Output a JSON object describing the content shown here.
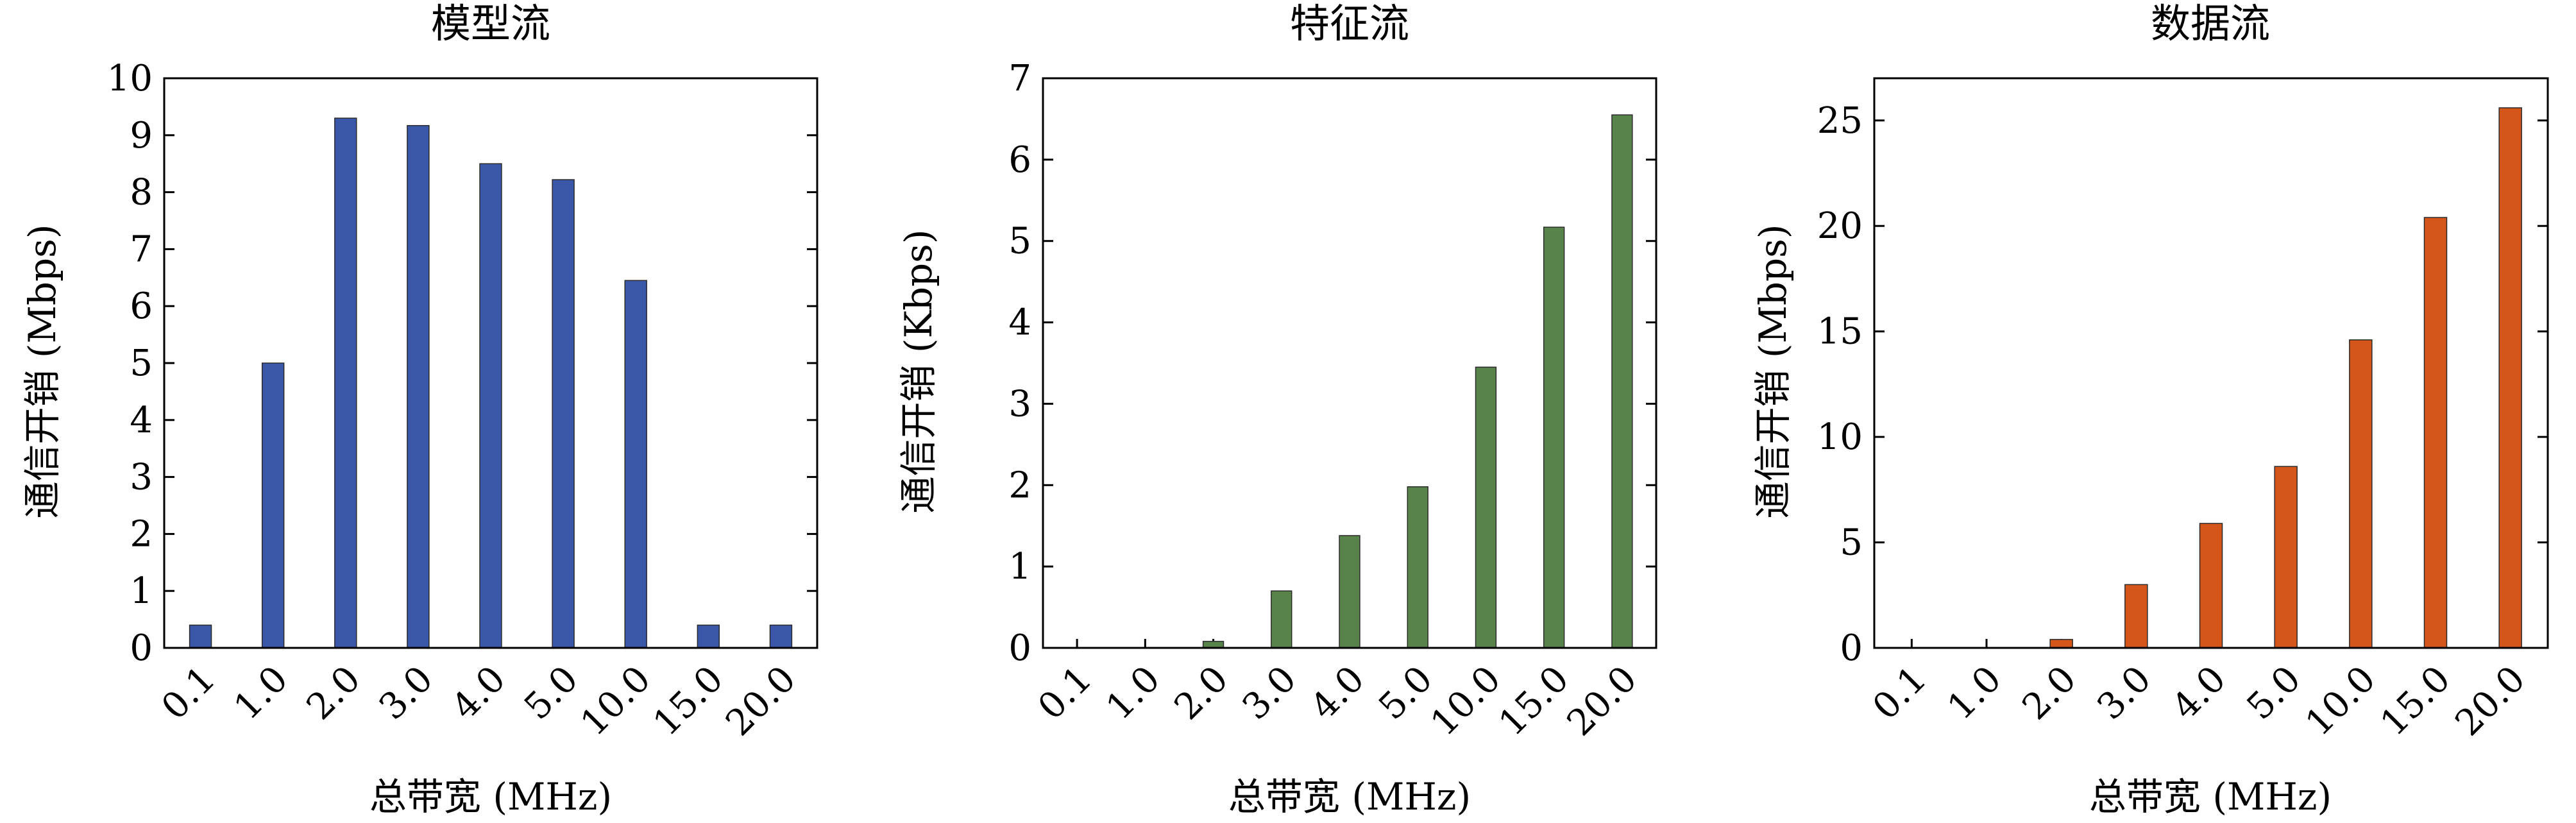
{
  "chart_data": [
    {
      "type": "bar",
      "title": "模型流",
      "xlabel": "总带宽 (MHz)",
      "ylabel": "通信开销 (Mbps)",
      "categories": [
        "0.1",
        "1.0",
        "2.0",
        "3.0",
        "4.0",
        "5.0",
        "10.0",
        "15.0",
        "20.0"
      ],
      "values": [
        0.4,
        5.0,
        9.3,
        9.17,
        8.5,
        8.22,
        6.45,
        0.4,
        0.4
      ],
      "ylim": [
        0,
        10
      ],
      "yticks": [
        "0",
        "1",
        "2",
        "3",
        "4",
        "5",
        "6",
        "7",
        "8",
        "9",
        "10"
      ],
      "color": "#3a57a8",
      "grid": false
    },
    {
      "type": "bar",
      "title": "特征流",
      "xlabel": "总带宽 (MHz)",
      "ylabel": "通信开销 (Kbps)",
      "categories": [
        "0.1",
        "1.0",
        "2.0",
        "3.0",
        "4.0",
        "5.0",
        "10.0",
        "15.0",
        "20.0"
      ],
      "values": [
        0.0,
        0.0,
        0.08,
        0.7,
        1.38,
        1.98,
        3.45,
        5.17,
        6.55
      ],
      "ylim": [
        0,
        7
      ],
      "yticks": [
        "0",
        "1",
        "2",
        "3",
        "4",
        "5",
        "6",
        "7"
      ],
      "color": "#58834a",
      "grid": false
    },
    {
      "type": "bar",
      "title": "数据流",
      "xlabel": "总带宽 (MHz)",
      "ylabel": "通信开销 (Mbps)",
      "categories": [
        "0.1",
        "1.0",
        "2.0",
        "3.0",
        "4.0",
        "5.0",
        "10.0",
        "15.0",
        "20.0"
      ],
      "values": [
        0.0,
        0.0,
        0.4,
        3.0,
        5.9,
        8.6,
        14.6,
        20.4,
        25.6
      ],
      "ylim": [
        0,
        27
      ],
      "yticks": [
        "0",
        "5",
        "10",
        "15",
        "20",
        "25"
      ],
      "color": "#d4561b",
      "grid": false
    }
  ]
}
